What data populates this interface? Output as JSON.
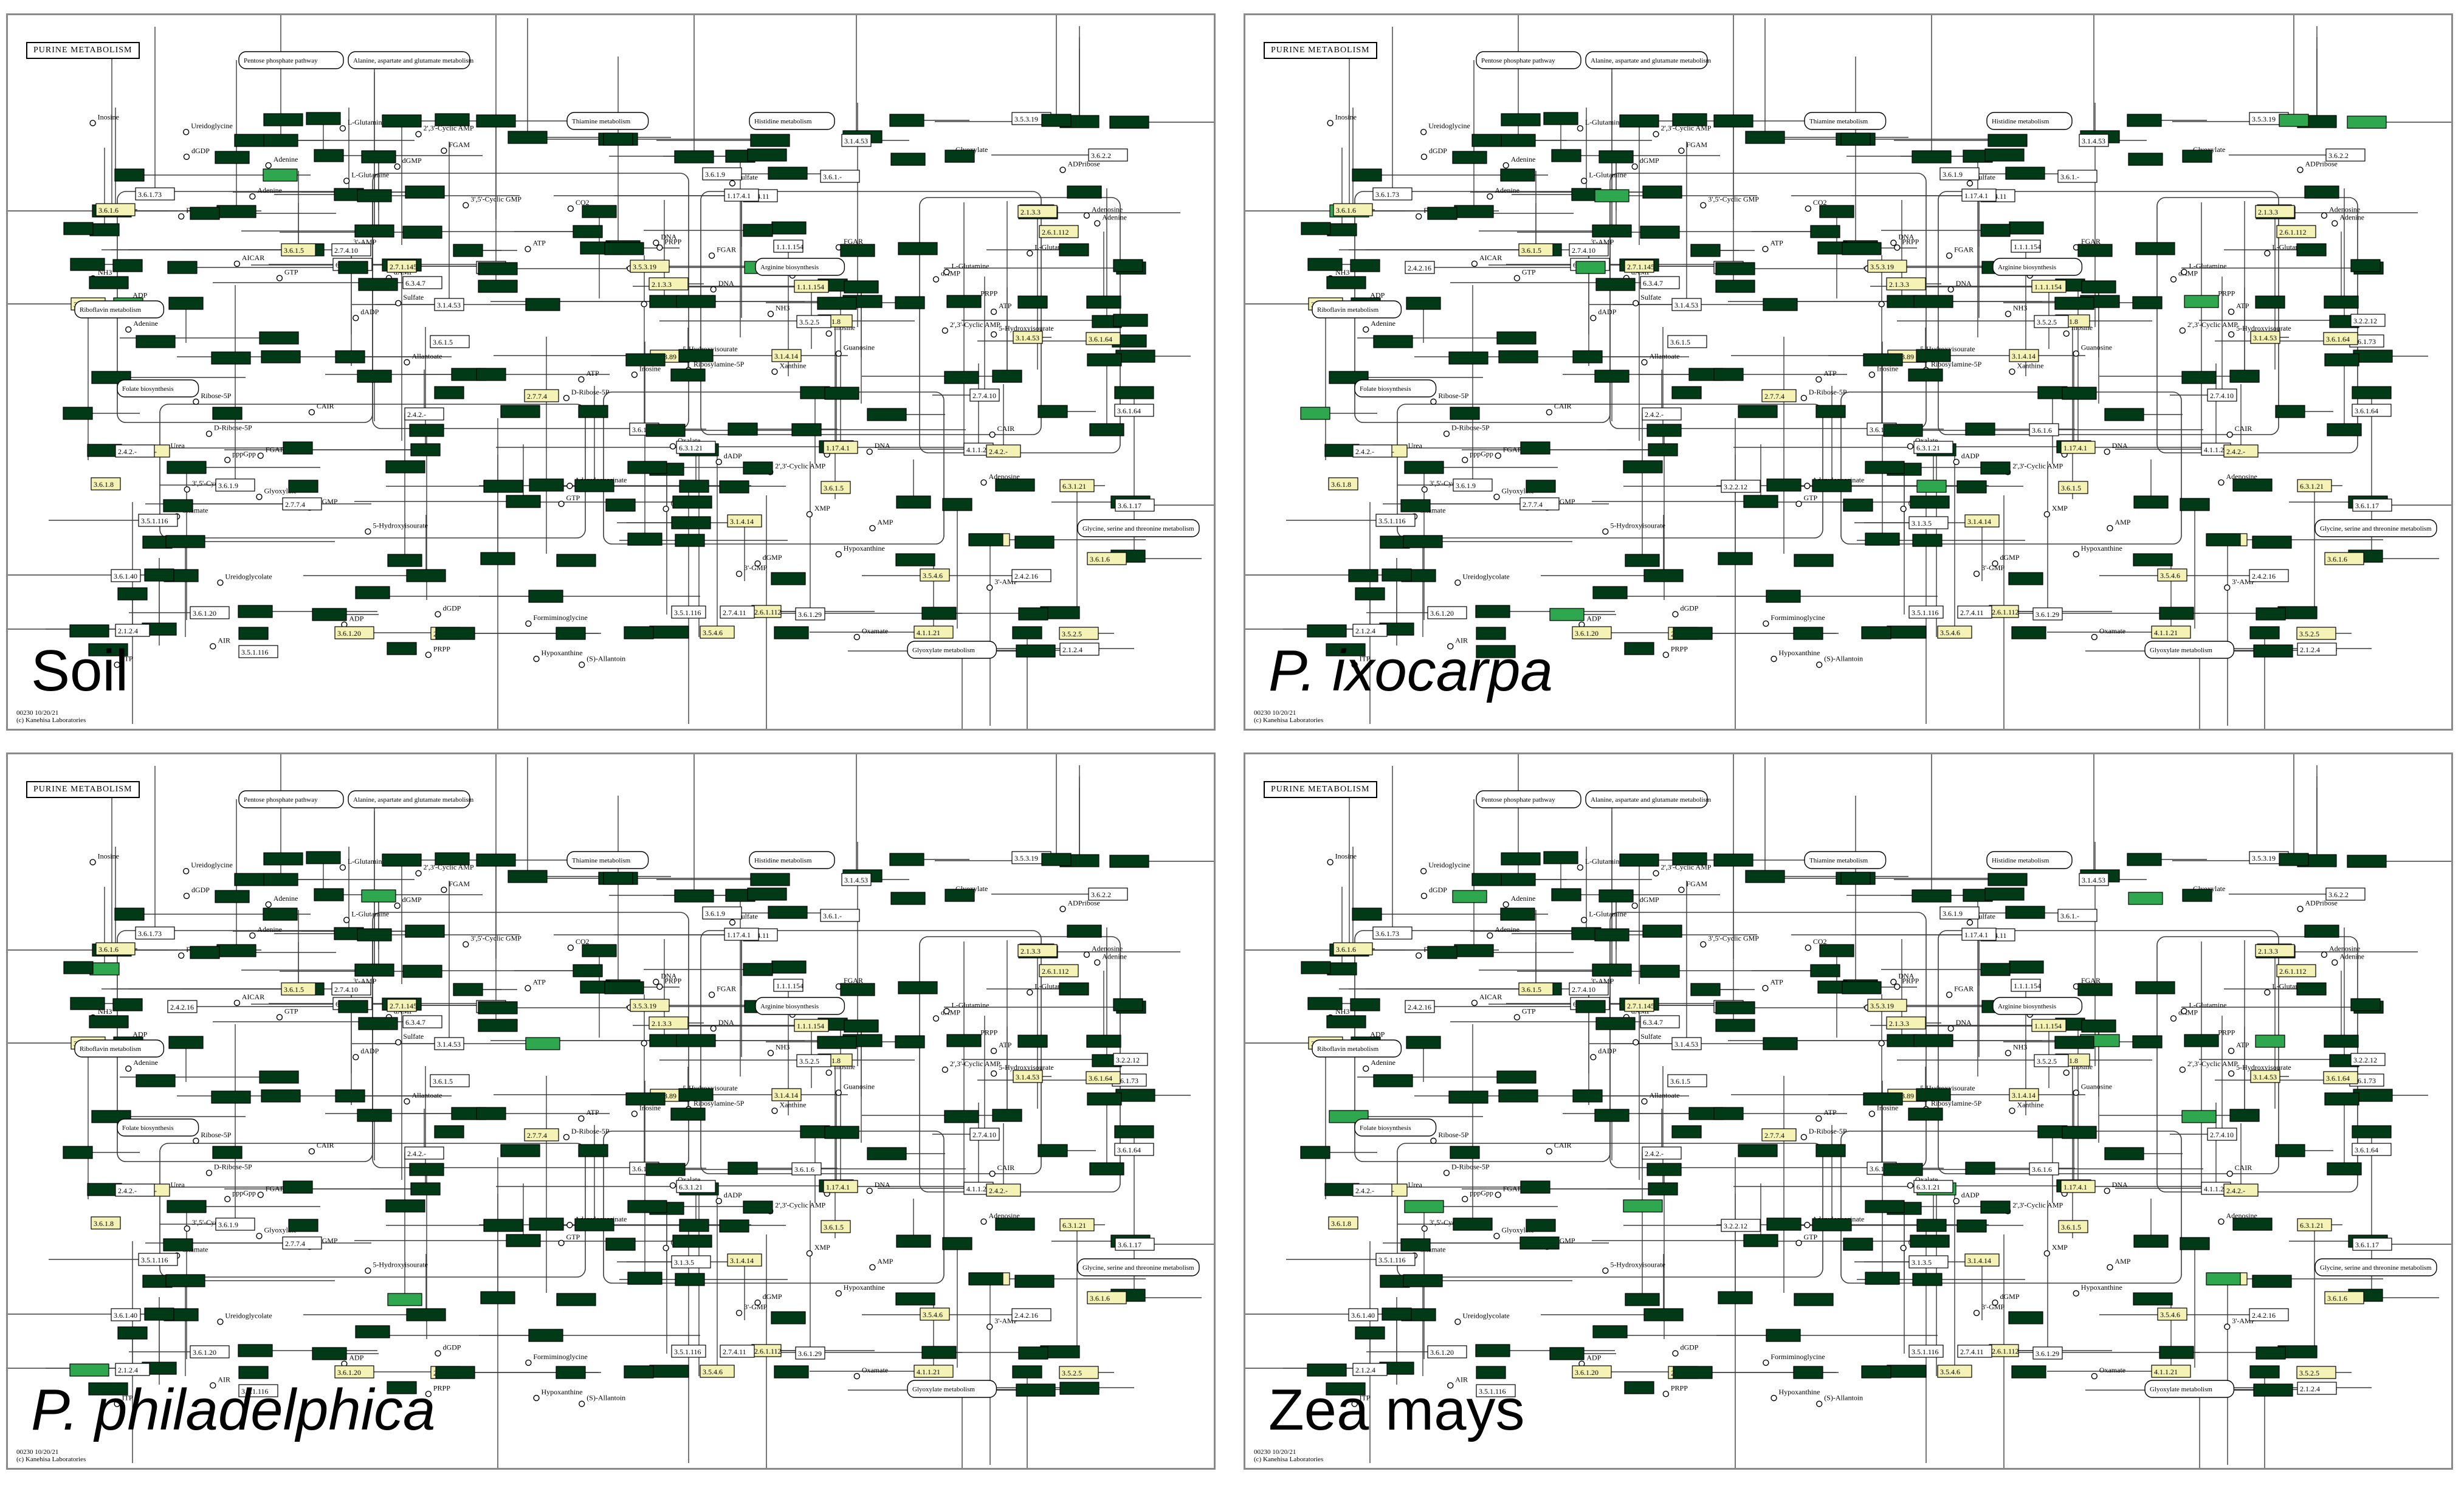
{
  "map_title": "PURINE METABOLISM",
  "footer": {
    "map_code": "00230 10/20/21",
    "credit": "(c) Kanehisa Laboratories"
  },
  "panels": [
    {
      "id": "soil",
      "organism": "Soil",
      "italic": false,
      "highlight_variant": 0
    },
    {
      "id": "p-ixocarpa",
      "organism": "P. ixocarpa",
      "italic": true,
      "highlight_variant": 1
    },
    {
      "id": "p-philadelphica",
      "organism": "P. philadelphica",
      "italic": true,
      "highlight_variant": 2
    },
    {
      "id": "zea-mays",
      "organism": "Zea mays",
      "italic": false,
      "highlight_variant": 3
    }
  ],
  "pathway_maps": [
    "Pentose phosphate pathway",
    "Alanine, aspartate and glutamate metabolism",
    "Thiamine metabolism",
    "Histidine metabolism",
    "Riboflavin metabolism",
    "Folate biosynthesis",
    "Arginine biosynthesis",
    "Glycine, serine and threonine metabolism",
    "Glyoxylate metabolism"
  ],
  "compounds": [
    "D-Ribose-5P",
    "Ribose-5P",
    "PRPP",
    "L-Glutamine",
    "Ribosylamine-5P",
    "GAR",
    "FGAR",
    "FGAM",
    "AIR",
    "CAIR",
    "SAICAR",
    "AICAR",
    "FAICAR",
    "IMP",
    "XMP",
    "GMP",
    "AMP",
    "ADP",
    "ATP",
    "GDP",
    "GTP",
    "dGDP",
    "dGTP",
    "dGMP",
    "dADP",
    "dATP",
    "dAMP",
    "Guanosine",
    "Xanthosine",
    "Inosine",
    "Adenosine",
    "Guanine",
    "Xanthine",
    "Hypoxanthine",
    "Adenine",
    "Deoxyguanosine",
    "Deoxyadenosine",
    "Urate",
    "5-Hydroxyisourate",
    "(S)-Allantoin",
    "Allantoate",
    "Urea",
    "Ureidoglycine",
    "Ureidoglycolate",
    "Glyoxylate",
    "Oxalate",
    "Carbamoyl phosphate",
    "NH3",
    "CO2",
    "APS",
    "PAPS",
    "RNA",
    "DNA",
    "ppGpp",
    "pppGpp",
    "3'-AMP",
    "3'-GMP",
    "2',3'-Cyclic AMP",
    "2',3'-Cyclic GMP",
    "3',5'-Cyclic GMP",
    "3',5'-Cyclic AMP",
    "ADPribose",
    "ITP",
    "IDP",
    "XTP",
    "XpppX",
    "Adenylosuccinate",
    "Oxamate",
    "Oxalurate",
    "Formiminoglycine",
    "Glycine",
    "Ureidoglycine",
    "Sulfate"
  ],
  "ec_labels": [
    "3.6.1.21",
    "6.3.4.7",
    "6.3.1.21",
    "3.6.1.64",
    "3.6.1.-",
    "4.1.1.21",
    "6.3.4.21",
    "3.6.1.40",
    "3.6.1.14",
    "3.6.1.73",
    "3.6.1.5",
    "3.6.1.6",
    "3.6.1.9",
    "3.6.1.8",
    "3.6.1.17",
    "3.1.3.99",
    "3.2.2.12",
    "3.5.4.6",
    "3.1.4.53",
    "2.4.2.15",
    "2.4.2.16",
    "3.2.2.8",
    "3.2.2.7",
    "3.5.2.5",
    "4.1.1.-",
    "3.5.3.- ",
    "2.1.2.4",
    "3.5.1.116",
    "2.7.4.10",
    "2.7.1.145",
    "3.1.4.14",
    "3.6.2.2",
    "3.1.4.53",
    "1.17.4.1",
    "2.4.2.-",
    "3.5.3.19",
    "1.1.1.154",
    "2.1.3.5",
    "2.6.1.112",
    "2.7.4.11",
    "1.1.98.6",
    "3.6.1.20",
    "3.6.1.41",
    "3.6.1.29",
    "3.1.3.89",
    "2.7.7.4",
    "3.1.3.5",
    "2.1.3.3"
  ],
  "colors": {
    "dark_box": "#003a17",
    "light_green": "#2fa74f",
    "yellow_box": "#f4f2b4",
    "line": "#3c3c3c"
  }
}
